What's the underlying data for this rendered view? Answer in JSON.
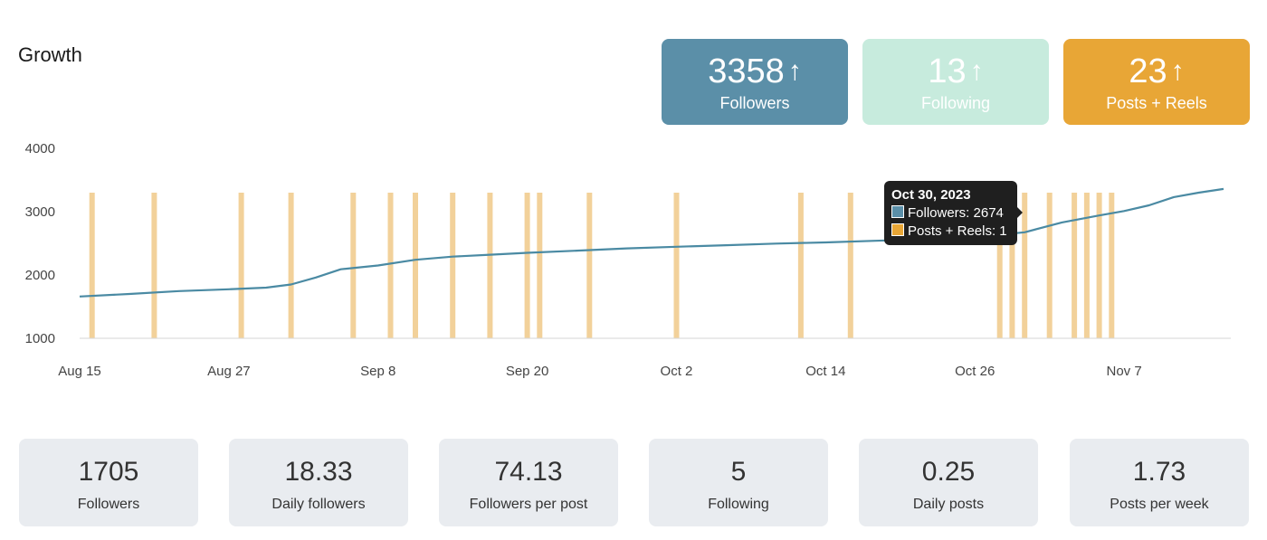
{
  "header": {
    "title": "Growth"
  },
  "kpis": [
    {
      "value": "3358",
      "label": "Followers",
      "arrow": "↑",
      "color": "#5b8fa8"
    },
    {
      "value": "13",
      "label": "Following",
      "arrow": "↑",
      "color": "#c7ebdd"
    },
    {
      "value": "23",
      "label": "Posts + Reels",
      "arrow": "↑",
      "color": "#e8a636"
    }
  ],
  "tooltip": {
    "date": "Oct 30, 2023",
    "followers_line": "Followers: 2674",
    "posts_line": "Posts + Reels: 1"
  },
  "stats": [
    {
      "value": "1705",
      "label": "Followers"
    },
    {
      "value": "18.33",
      "label": "Daily followers"
    },
    {
      "value": "74.13",
      "label": "Followers per post"
    },
    {
      "value": "5",
      "label": "Following"
    },
    {
      "value": "0.25",
      "label": "Daily posts"
    },
    {
      "value": "1.73",
      "label": "Posts per week"
    }
  ],
  "chart_data": {
    "type": "line",
    "title": "Growth",
    "xlabel": "",
    "ylabel": "",
    "ylim": [
      1000,
      4000
    ],
    "y_ticks": [
      "1000",
      "2000",
      "3000",
      "4000"
    ],
    "x_ticks": [
      "Aug 15",
      "Aug 27",
      "Sep 8",
      "Sep 20",
      "Oct 2",
      "Oct 14",
      "Oct 26",
      "Nov 7"
    ],
    "x_tick_dates": [
      "2023-08-15",
      "2023-08-27",
      "2023-09-08",
      "2023-09-20",
      "2023-10-02",
      "2023-10-14",
      "2023-10-26",
      "2023-11-07"
    ],
    "x_range": [
      "2023-08-15",
      "2023-11-15"
    ],
    "grid": false,
    "series": [
      {
        "name": "Followers",
        "type": "line",
        "color": "#4a8aa3",
        "points": [
          [
            "2023-08-15",
            1660
          ],
          [
            "2023-08-19",
            1700
          ],
          [
            "2023-08-23",
            1745
          ],
          [
            "2023-08-27",
            1775
          ],
          [
            "2023-08-30",
            1800
          ],
          [
            "2023-09-01",
            1850
          ],
          [
            "2023-09-03",
            1960
          ],
          [
            "2023-09-05",
            2090
          ],
          [
            "2023-09-08",
            2150
          ],
          [
            "2023-09-11",
            2240
          ],
          [
            "2023-09-14",
            2290
          ],
          [
            "2023-09-17",
            2320
          ],
          [
            "2023-09-20",
            2350
          ],
          [
            "2023-09-24",
            2385
          ],
          [
            "2023-09-28",
            2420
          ],
          [
            "2023-10-02",
            2445
          ],
          [
            "2023-10-06",
            2470
          ],
          [
            "2023-10-10",
            2495
          ],
          [
            "2023-10-14",
            2515
          ],
          [
            "2023-10-18",
            2540
          ],
          [
            "2023-10-22",
            2565
          ],
          [
            "2023-10-26",
            2600
          ],
          [
            "2023-10-30",
            2674
          ],
          [
            "2023-11-02",
            2830
          ],
          [
            "2023-11-05",
            2940
          ],
          [
            "2023-11-07",
            3010
          ],
          [
            "2023-11-09",
            3100
          ],
          [
            "2023-11-11",
            3230
          ],
          [
            "2023-11-13",
            3300
          ],
          [
            "2023-11-15",
            3358
          ]
        ]
      },
      {
        "name": "Posts + Reels",
        "type": "bar",
        "color": "#f2d19a",
        "dates": [
          "2023-08-16",
          "2023-08-21",
          "2023-08-28",
          "2023-09-01",
          "2023-09-06",
          "2023-09-09",
          "2023-09-11",
          "2023-09-14",
          "2023-09-17",
          "2023-09-20",
          "2023-09-21",
          "2023-09-25",
          "2023-10-02",
          "2023-10-12",
          "2023-10-16",
          "2023-10-28",
          "2023-10-29",
          "2023-10-30",
          "2023-11-01",
          "2023-11-03",
          "2023-11-04",
          "2023-11-05",
          "2023-11-06"
        ],
        "values": [
          1,
          1,
          1,
          1,
          1,
          1,
          1,
          1,
          1,
          1,
          1,
          1,
          1,
          1,
          1,
          1,
          1,
          1,
          1,
          1,
          1,
          1,
          1
        ]
      }
    ]
  }
}
